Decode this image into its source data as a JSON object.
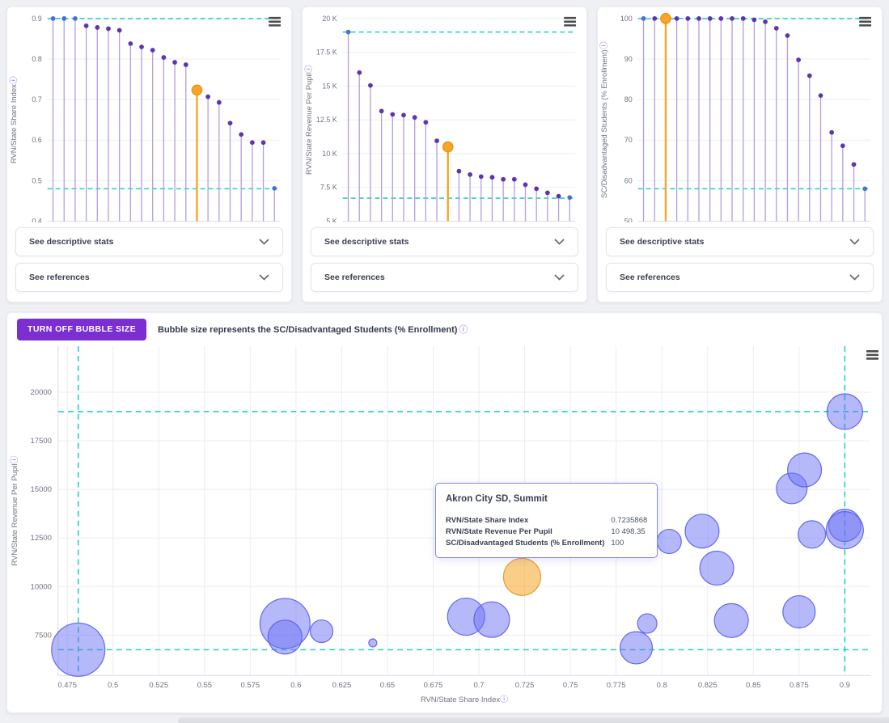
{
  "labels": {
    "descriptive_stats": "See descriptive stats",
    "references": "See references"
  },
  "bubble_section": {
    "button_label": "TURN OFF BUBBLE SIZE",
    "caption": "Bubble size represents the SC/Disadvantaged Students (% Enrollment)",
    "info_icon": "ⓘ"
  },
  "tooltip": {
    "title": "Akron City SD, Summit",
    "rows": [
      {
        "label": "RVN/State Share Index",
        "value": "0.7235868"
      },
      {
        "label": "RVN/State Revenue Per Pupil",
        "value": "10 498.35"
      },
      {
        "label": "SC/Disadvantaged Students (% Enrollment)",
        "value": "100"
      }
    ]
  },
  "colors": {
    "stem": "#b49ddc",
    "dot": "#5e35b1",
    "dot_blue": "#4a6fd8",
    "highlight_orange": "#f5a623",
    "highlight_orange_stroke": "#e6941c",
    "reference_teal": "#25cfc5",
    "grid": "#ebedf2",
    "axis_line": "#d9dce3",
    "tick_text": "#6e7480",
    "info_icon": "#8a63d2",
    "bubble_fill": "#6b72f3",
    "bubble_stroke": "#575df0",
    "menu_icon": "#4d4d4d",
    "accent_purple": "#7b2fd1"
  },
  "chart_data": [
    {
      "type": "lollipop",
      "ylabel": "RVN/State Share Index",
      "ylim": [
        0.4,
        0.9
      ],
      "yticks": [
        0.4,
        0.5,
        0.6,
        0.7,
        0.8,
        0.9
      ],
      "ytick_labels": [
        "0.4",
        "0.5",
        "0.6",
        "0.7",
        "0.8",
        "0.9"
      ],
      "ref_high": 0.9,
      "ref_low": 0.48,
      "values": [
        0.9,
        0.9,
        0.9,
        0.882,
        0.878,
        0.875,
        0.871,
        0.838,
        0.83,
        0.822,
        0.804,
        0.792,
        0.786,
        0.7235868,
        0.707,
        0.693,
        0.642,
        0.614,
        0.594,
        0.594,
        0.481
      ],
      "highlight_index": 13,
      "blue_indices": [
        0,
        1,
        2,
        20
      ]
    },
    {
      "type": "lollipop",
      "ylabel": "RVN/State Revenue Per Pupil",
      "ylim": [
        5000,
        20000
      ],
      "yticks": [
        5000,
        7500,
        10000,
        12500,
        15000,
        17500,
        20000
      ],
      "ytick_labels": [
        "5 K",
        "7.5 K",
        "10 K",
        "12.5 K",
        "15 K",
        "17.5 K",
        "20 K"
      ],
      "ref_high": 19000,
      "ref_low": 6700,
      "values": [
        19000,
        16000,
        15050,
        13150,
        12900,
        12850,
        12680,
        12320,
        10950,
        10498.35,
        8700,
        8450,
        8300,
        8250,
        8100,
        8100,
        7700,
        7400,
        7100,
        6850,
        6750
      ],
      "highlight_index": 9,
      "blue_indices": [
        0,
        20
      ]
    },
    {
      "type": "lollipop",
      "ylabel": "SC/Disadvantaged Students (% Enrollment)",
      "ylim": [
        50,
        100
      ],
      "yticks": [
        50,
        60,
        70,
        80,
        90,
        100
      ],
      "ytick_labels": [
        "50",
        "60",
        "70",
        "80",
        "90",
        "100"
      ],
      "ref_high": 100,
      "ref_low": 58,
      "values": [
        100,
        100,
        100,
        100,
        100,
        100,
        100,
        100,
        100,
        100,
        99.7,
        99.2,
        97.6,
        95.8,
        89.8,
        85.9,
        81,
        71.9,
        68.6,
        64,
        58
      ],
      "highlight_index": 2,
      "blue_indices": [
        0,
        20
      ]
    },
    {
      "type": "bubble",
      "xlabel": "RVN/State Share Index",
      "ylabel": "RVN/State Revenue Per Pupil",
      "size_label": "SC/Disadvantaged Students (% Enrollment)",
      "xlim": [
        0.47,
        0.914
      ],
      "ylim": [
        5425,
        22370
      ],
      "xticks": [
        0.475,
        0.5,
        0.525,
        0.55,
        0.575,
        0.6,
        0.625,
        0.65,
        0.675,
        0.7,
        0.725,
        0.75,
        0.775,
        0.8,
        0.825,
        0.85,
        0.875,
        0.9
      ],
      "xtick_labels": [
        "0.475",
        "0.5",
        "0.525",
        "0.55",
        "0.575",
        "0.6",
        "0.625",
        "0.65",
        "0.675",
        "0.7",
        "0.725",
        "0.75",
        "0.775",
        "0.8",
        "0.825",
        "0.85",
        "0.875",
        "0.9"
      ],
      "yticks": [
        7500,
        10000,
        12500,
        15000,
        17500,
        20000
      ],
      "ytick_labels": [
        "7500",
        "10000",
        "12500",
        "15000",
        "17500",
        "20000"
      ],
      "ref_x": [
        0.481,
        0.9
      ],
      "ref_y": [
        19000,
        6750
      ],
      "points": [
        {
          "x": 0.481,
          "y": 6750,
          "pct": 100,
          "r": 33
        },
        {
          "x": 0.594,
          "y": 8100,
          "pct": 100,
          "r": 31
        },
        {
          "x": 0.594,
          "y": 7400,
          "pct": 99.7,
          "r": 21
        },
        {
          "x": 0.614,
          "y": 7700,
          "pct": 71.9,
          "r": 14
        },
        {
          "x": 0.642,
          "y": 7100,
          "pct": 58,
          "r": 5
        },
        {
          "x": 0.693,
          "y": 8450,
          "pct": 100,
          "r": 23
        },
        {
          "x": 0.707,
          "y": 8300,
          "pct": 99.2,
          "r": 22
        },
        {
          "x": 0.7235868,
          "y": 10498.35,
          "pct": 100,
          "r": 23,
          "highlight": true,
          "name": "Akron City SD, Summit"
        },
        {
          "x": 0.786,
          "y": 6850,
          "pct": 95.8,
          "r": 20
        },
        {
          "x": 0.792,
          "y": 8100,
          "pct": 64,
          "r": 12
        },
        {
          "x": 0.804,
          "y": 12320,
          "pct": 81,
          "r": 15
        },
        {
          "x": 0.822,
          "y": 12850,
          "pct": 100,
          "r": 21
        },
        {
          "x": 0.83,
          "y": 10950,
          "pct": 100,
          "r": 21
        },
        {
          "x": 0.838,
          "y": 8250,
          "pct": 97.6,
          "r": 21
        },
        {
          "x": 0.875,
          "y": 8700,
          "pct": 89.8,
          "r": 20
        },
        {
          "x": 0.871,
          "y": 15050,
          "pct": 85.9,
          "r": 19
        },
        {
          "x": 0.878,
          "y": 16000,
          "pct": 100,
          "r": 21
        },
        {
          "x": 0.882,
          "y": 12680,
          "pct": 68.6,
          "r": 17
        },
        {
          "x": 0.9,
          "y": 19000,
          "pct": 100,
          "r": 22
        },
        {
          "x": 0.9,
          "y": 13150,
          "pct": 100,
          "r": 20
        },
        {
          "x": 0.9,
          "y": 12900,
          "pct": 100,
          "r": 23
        }
      ]
    }
  ]
}
